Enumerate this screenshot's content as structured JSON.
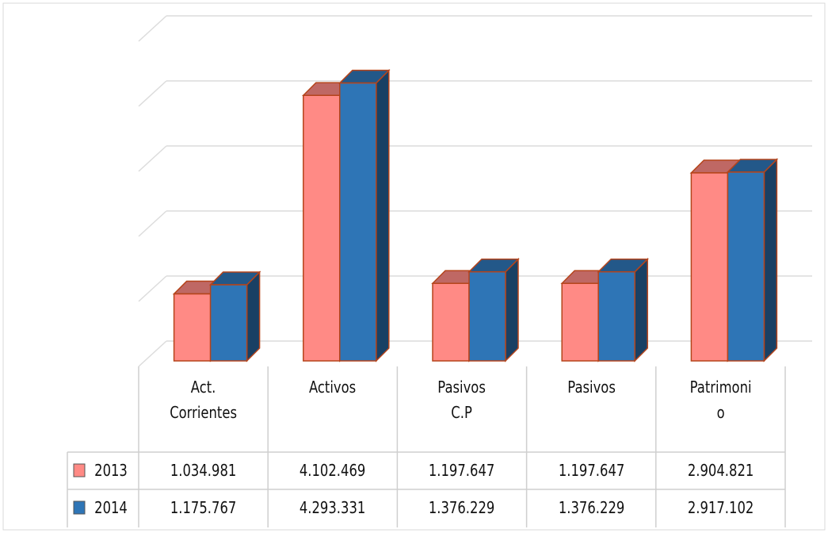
{
  "chart_data": {
    "type": "bar3d",
    "categories": [
      "Act.\nCorrientes",
      "Activos",
      "Pasivos\nC.P",
      "Pasivos",
      "Patrimoni\no"
    ],
    "series": [
      {
        "name": "2013",
        "color": "#ff8a85",
        "values": [
          1034981,
          4102469,
          1197647,
          1197647,
          2904821
        ],
        "value_labels": [
          "1.034.981",
          "4.102.469",
          "1.197.647",
          "1.197.647",
          "2.904.821"
        ]
      },
      {
        "name": "2014",
        "color": "#2e75b6",
        "values": [
          1175767,
          4293331,
          1376229,
          1376229,
          2917102
        ],
        "value_labels": [
          "1.175.767",
          "4.293.331",
          "1.376.229",
          "1.376.229",
          "2.917.102"
        ]
      }
    ],
    "ylim": [
      0,
      5000000
    ],
    "yticks": [
      0,
      1000000,
      2000000,
      3000000,
      4000000,
      5000000
    ],
    "grid": true
  }
}
